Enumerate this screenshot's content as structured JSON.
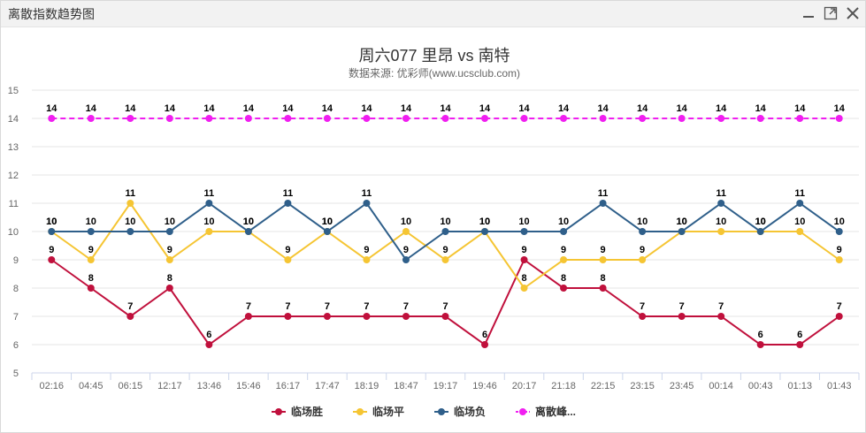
{
  "window": {
    "title": "离散指数趋势图"
  },
  "chart_data": {
    "type": "line",
    "title": "周六077 里昂 vs 南特",
    "subtitle": "数据来源: 优彩师(www.ucsclub.com)",
    "xlabel": "",
    "ylabel": "",
    "ylim": [
      5,
      15
    ],
    "yticks": [
      5,
      6,
      7,
      8,
      9,
      10,
      11,
      12,
      13,
      14,
      15
    ],
    "grid": true,
    "legend_position": "bottom",
    "categories": [
      "02:16",
      "04:45",
      "06:15",
      "12:17",
      "13:46",
      "15:46",
      "16:17",
      "17:47",
      "18:19",
      "18:47",
      "19:17",
      "19:46",
      "20:17",
      "21:18",
      "22:15",
      "23:15",
      "23:45",
      "00:14",
      "00:43",
      "01:13",
      "01:43"
    ],
    "series": [
      {
        "name": "临场胜",
        "color": "#c0103c",
        "dashed": false,
        "label_offset": -8,
        "values": [
          9,
          8,
          7,
          8,
          6,
          7,
          7,
          7,
          7,
          7,
          7,
          6,
          9,
          8,
          8,
          7,
          7,
          7,
          6,
          6,
          7
        ]
      },
      {
        "name": "临场平",
        "color": "#f5c533",
        "dashed": false,
        "label_offset": -8,
        "values": [
          10,
          9,
          11,
          9,
          10,
          10,
          9,
          10,
          9,
          10,
          9,
          10,
          8,
          9,
          9,
          9,
          10,
          10,
          10,
          10,
          9
        ]
      },
      {
        "name": "临场负",
        "color": "#2f5f8a",
        "dashed": false,
        "label_offset": -8,
        "values": [
          10,
          10,
          10,
          10,
          11,
          10,
          11,
          10,
          11,
          9,
          10,
          10,
          10,
          10,
          11,
          10,
          10,
          11,
          10,
          11,
          10
        ]
      },
      {
        "name": "离散峰...",
        "color": "#f01ef0",
        "dashed": true,
        "label_offset": -8,
        "values": [
          14,
          14,
          14,
          14,
          14,
          14,
          14,
          14,
          14,
          14,
          14,
          14,
          14,
          14,
          14,
          14,
          14,
          14,
          14,
          14,
          14
        ]
      }
    ]
  }
}
